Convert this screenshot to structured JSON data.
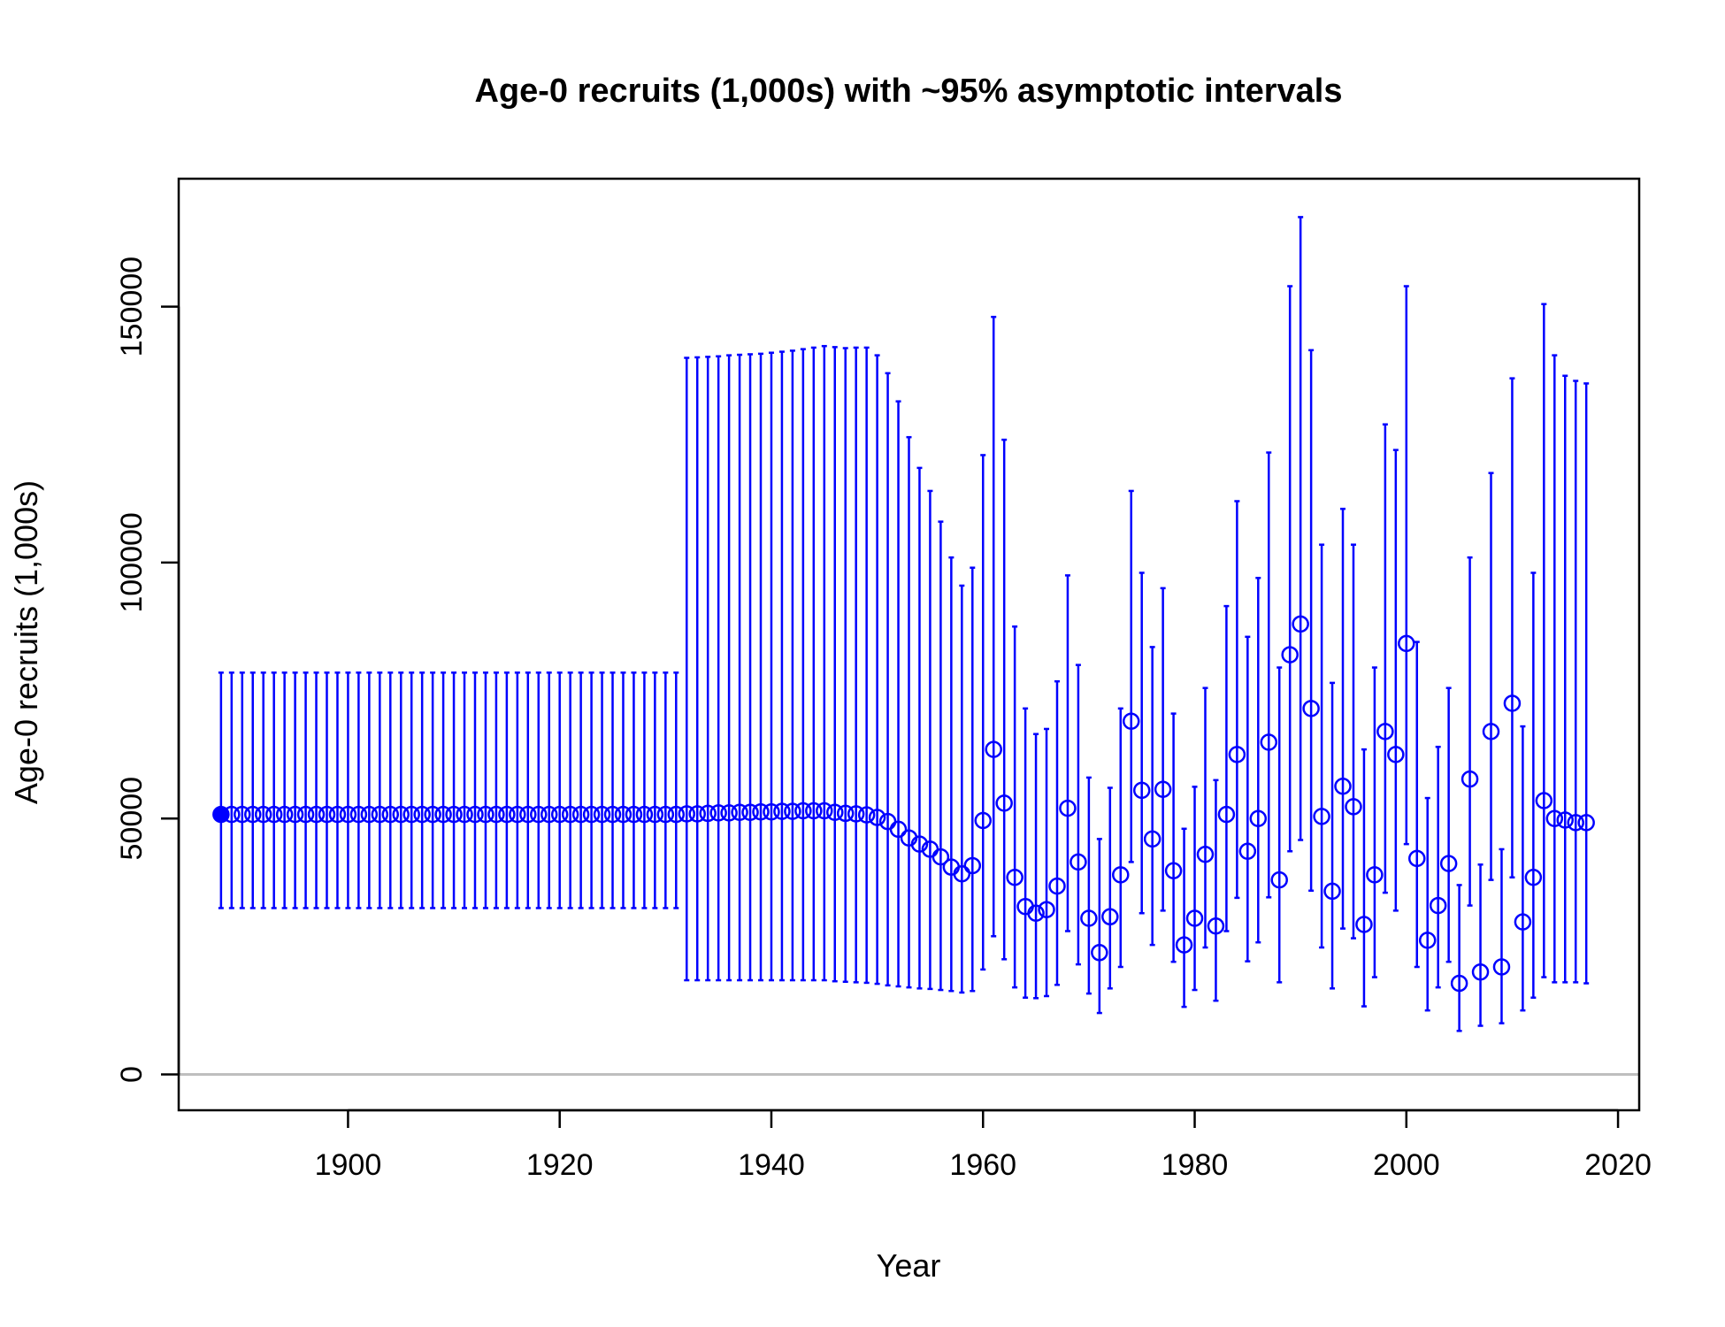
{
  "chart_data": {
    "type": "scatter",
    "title": "Age-0 recruits (1,000s) with ~95% asymptotic intervals",
    "xlabel": "Year",
    "ylabel": "Age-0 recruits (1,000s)",
    "xlim": [
      1884,
      2022
    ],
    "ylim": [
      -7000,
      175000
    ],
    "x_ticks": [
      1900,
      1920,
      1940,
      1960,
      1980,
      2000,
      2020
    ],
    "y_ticks": [
      0,
      50000,
      100000,
      150000
    ],
    "reference_line": 0,
    "colors": {
      "series": "#0000ff",
      "reference_line": "#bebebe",
      "box": "#000000"
    },
    "series": [
      {
        "years": [
          1888,
          1889,
          1890,
          1891,
          1892,
          1893,
          1894,
          1895,
          1896,
          1897,
          1898,
          1899,
          1900,
          1901,
          1902,
          1903,
          1904,
          1905,
          1906,
          1907,
          1908,
          1909,
          1910,
          1911,
          1912,
          1913,
          1914,
          1915,
          1916,
          1917,
          1918,
          1919,
          1920,
          1921,
          1922,
          1923,
          1924,
          1925,
          1926,
          1927,
          1928,
          1929,
          1930,
          1931,
          1932,
          1933,
          1934,
          1935,
          1936,
          1937,
          1938,
          1939,
          1940,
          1941,
          1942,
          1943,
          1944,
          1945,
          1946,
          1947,
          1948,
          1949,
          1950,
          1951,
          1952,
          1953,
          1954,
          1955,
          1956,
          1957,
          1958,
          1959,
          1960,
          1961,
          1962,
          1963,
          1964,
          1965,
          1966,
          1967,
          1968,
          1969,
          1970,
          1971,
          1972,
          1973,
          1974,
          1975,
          1976,
          1977,
          1978,
          1979,
          1980,
          1981,
          1982,
          1983,
          1984,
          1985,
          1986,
          1987,
          1988,
          1989,
          1990,
          1991,
          1992,
          1993,
          1994,
          1995,
          1996,
          1997,
          1998,
          1999,
          2000,
          2001,
          2002,
          2003,
          2004,
          2005,
          2006,
          2007,
          2008,
          2009,
          2010,
          2011,
          2012,
          2013,
          2014,
          2015,
          2016,
          2017
        ],
        "estimate": [
          50800,
          50800,
          50800,
          50800,
          50800,
          50800,
          50800,
          50800,
          50800,
          50800,
          50800,
          50800,
          50800,
          50800,
          50800,
          50800,
          50800,
          50800,
          50800,
          50800,
          50800,
          50800,
          50800,
          50800,
          50800,
          50800,
          50800,
          50800,
          50800,
          50800,
          50800,
          50800,
          50800,
          50800,
          50800,
          50800,
          50800,
          50800,
          50800,
          50800,
          50800,
          50800,
          50800,
          50800,
          50900,
          50900,
          51000,
          51100,
          51100,
          51200,
          51200,
          51300,
          51300,
          51400,
          51400,
          51500,
          51500,
          51500,
          51200,
          51000,
          50900,
          50700,
          50200,
          49400,
          47900,
          46200,
          45000,
          44000,
          42500,
          40500,
          39200,
          40800,
          49600,
          63500,
          53000,
          38500,
          32800,
          31500,
          32200,
          36800,
          52000,
          41500,
          30500,
          23800,
          30800,
          39000,
          69000,
          55500,
          46000,
          55700,
          39800,
          25300,
          30500,
          43000,
          29000,
          50800,
          62500,
          43600,
          50000,
          64900,
          38000,
          82000,
          88000,
          71500,
          50400,
          35800,
          56300,
          52300,
          29300,
          39000,
          67000,
          62500,
          84200,
          42200,
          26200,
          33000,
          41200,
          17800,
          57700,
          20000,
          67000,
          21000,
          72500,
          29800,
          38500,
          53500,
          50000,
          49700,
          49200,
          49200
        ],
        "lower": [
          32500,
          32500,
          32500,
          32500,
          32500,
          32500,
          32500,
          32500,
          32500,
          32500,
          32500,
          32500,
          32500,
          32500,
          32500,
          32500,
          32500,
          32500,
          32500,
          32500,
          32500,
          32500,
          32500,
          32500,
          32500,
          32500,
          32500,
          32500,
          32500,
          32500,
          32500,
          32500,
          32500,
          32500,
          32500,
          32500,
          32500,
          32500,
          32500,
          32500,
          32500,
          32500,
          32500,
          32500,
          18400,
          18400,
          18400,
          18400,
          18400,
          18400,
          18400,
          18400,
          18400,
          18400,
          18400,
          18400,
          18400,
          18400,
          18200,
          18100,
          18000,
          17900,
          17700,
          17400,
          17200,
          17000,
          16800,
          16700,
          16500,
          16300,
          16000,
          16300,
          20500,
          27000,
          22500,
          17000,
          15000,
          14900,
          15300,
          17500,
          28000,
          21500,
          15800,
          12000,
          16800,
          21000,
          41500,
          31500,
          25300,
          32000,
          22000,
          13200,
          16500,
          24800,
          14400,
          28000,
          34500,
          22100,
          25800,
          34600,
          18000,
          43600,
          45800,
          35900,
          24800,
          16800,
          28500,
          26600,
          13300,
          19000,
          35500,
          32000,
          45000,
          21000,
          12500,
          17000,
          22000,
          8500,
          33000,
          9500,
          38000,
          10000,
          38500,
          12500,
          15000,
          19000,
          18000,
          18000,
          18000,
          17800
        ],
        "upper": [
          78500,
          78500,
          78500,
          78500,
          78500,
          78500,
          78500,
          78500,
          78500,
          78500,
          78500,
          78500,
          78500,
          78500,
          78500,
          78500,
          78500,
          78500,
          78500,
          78500,
          78500,
          78500,
          78500,
          78500,
          78500,
          78500,
          78500,
          78500,
          78500,
          78500,
          78500,
          78500,
          78500,
          78500,
          78500,
          78500,
          78500,
          78500,
          78500,
          78500,
          78500,
          78500,
          78500,
          78500,
          140000,
          140100,
          140200,
          140300,
          140500,
          140600,
          140700,
          140800,
          141000,
          141200,
          141400,
          141700,
          142000,
          142300,
          142100,
          141900,
          142000,
          142000,
          140500,
          137000,
          131500,
          124500,
          118500,
          114000,
          108000,
          101000,
          95500,
          99000,
          121000,
          148000,
          124000,
          87500,
          71500,
          66500,
          67500,
          76800,
          97500,
          80000,
          58000,
          46000,
          56000,
          71500,
          114000,
          98000,
          83500,
          95000,
          70500,
          48000,
          56200,
          75500,
          57500,
          91500,
          112000,
          85500,
          97000,
          121500,
          79500,
          154000,
          167500,
          141500,
          103500,
          76500,
          110500,
          103500,
          63500,
          79500,
          127000,
          122000,
          154000,
          84500,
          54000,
          64000,
          75500,
          37000,
          101000,
          41000,
          117500,
          44000,
          136000,
          68000,
          98000,
          150500,
          140500,
          136500,
          135500,
          135000
        ]
      }
    ]
  }
}
